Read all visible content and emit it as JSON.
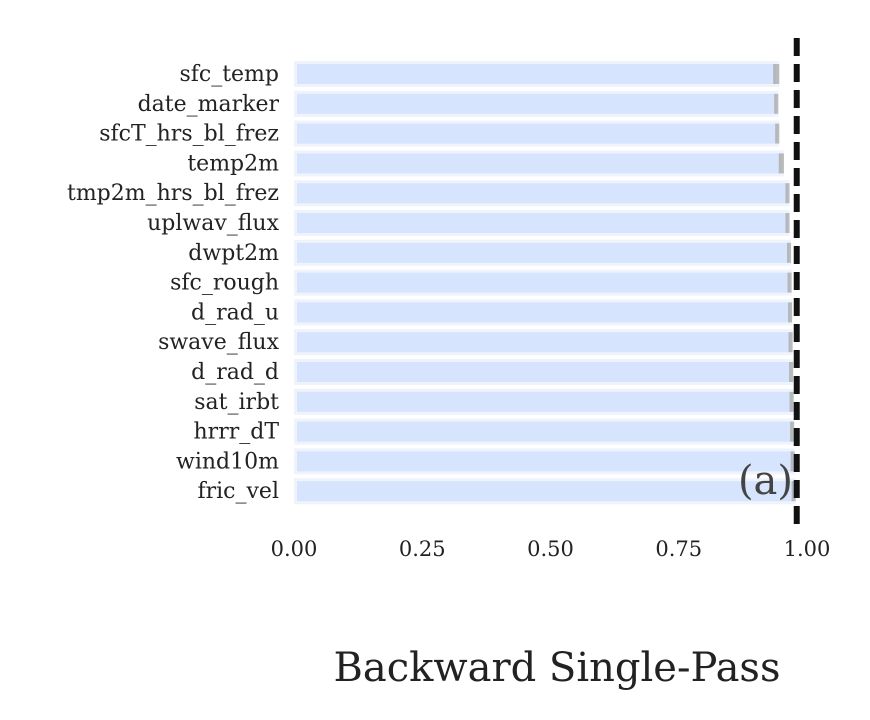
{
  "chart_data": {
    "type": "bar",
    "orientation": "horizontal",
    "title": "Backward Single-Pass",
    "panel_label": "(a)",
    "xlabel": "",
    "ylabel": "",
    "xlim": [
      0,
      1.0
    ],
    "xticks": [
      "0.00",
      "0.25",
      "0.50",
      "0.75",
      "1.00"
    ],
    "reference_line": 0.98,
    "categories": [
      "sfc_temp",
      "date_marker",
      "sfcT_hrs_bl_frez",
      "temp2m",
      "tmp2m_hrs_bl_frez",
      "uplwav_flux",
      "dwpt2m",
      "sfc_rough",
      "d_rad_u",
      "swave_flux",
      "d_rad_d",
      "sat_irbt",
      "hrrr_dT",
      "wind10m",
      "fric_vel"
    ],
    "values": [
      0.94,
      0.94,
      0.942,
      0.95,
      0.962,
      0.962,
      0.965,
      0.966,
      0.967,
      0.968,
      0.969,
      0.97,
      0.971,
      0.972,
      0.974
    ],
    "errors": [
      0.006,
      0.004,
      0.004,
      0.005,
      0.004,
      0.004,
      0.004,
      0.004,
      0.004,
      0.004,
      0.004,
      0.004,
      0.004,
      0.004,
      0.004
    ],
    "grid": false,
    "colors": {
      "bar": "#d6e5fd",
      "bar_background": "#eef3fc",
      "error": "#a8a8a8",
      "reference_line": "#111111",
      "text": "#222222"
    }
  }
}
